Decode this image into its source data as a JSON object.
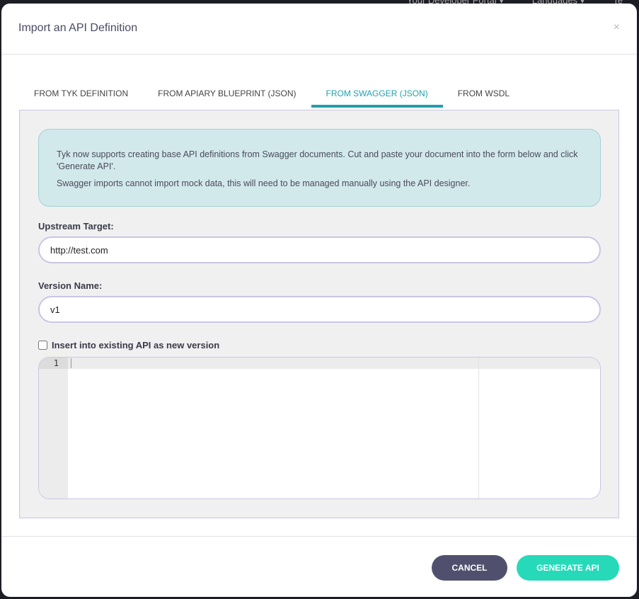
{
  "background_nav": [
    "Your Developer Portal ▾",
    "Languages ▾",
    "Te"
  ],
  "modal": {
    "title": "Import an API Definition",
    "close": "×"
  },
  "tabs": [
    {
      "label": "FROM TYK DEFINITION"
    },
    {
      "label": "FROM APIARY BLUEPRINT (JSON)"
    },
    {
      "label": "FROM SWAGGER (JSON)",
      "active": true
    },
    {
      "label": "FROM WSDL"
    }
  ],
  "info": {
    "line1": "Tyk now supports creating base API definitions from Swagger documents. Cut and paste your document into the form below and click 'Generate API'.",
    "line2": "Swagger imports cannot import mock data, this will need to be managed manually using the API designer."
  },
  "form": {
    "upstream_label": "Upstream Target:",
    "upstream_value": "http://test.com",
    "version_label": "Version Name:",
    "version_value": "v1",
    "insert_label": "Insert into existing API as new version",
    "insert_checked": false
  },
  "editor": {
    "line_number": "1"
  },
  "footer": {
    "cancel": "CANCEL",
    "generate": "GENERATE API"
  },
  "colors": {
    "accent": "#20a0ad",
    "cancel": "#50506e",
    "generate": "#26d9b9"
  }
}
